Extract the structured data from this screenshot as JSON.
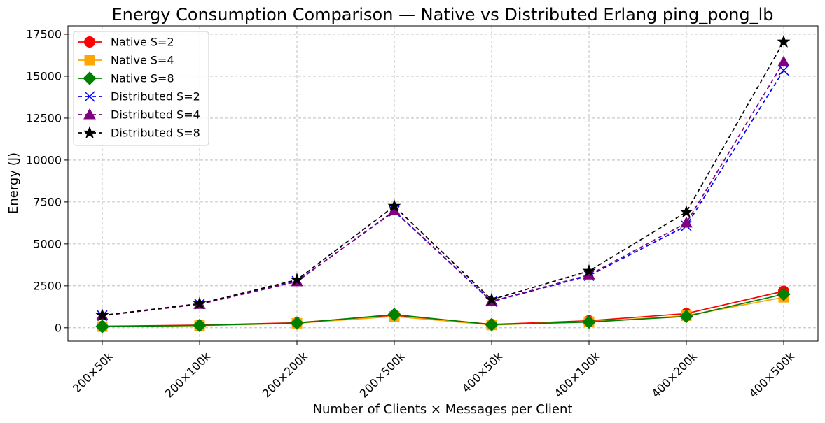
{
  "chart_data": {
    "type": "line",
    "title": "Energy Consumption Comparison — Native vs Distributed Erlang ping_pong_lb",
    "xlabel": "Number of Clients × Messages per Client",
    "ylabel": "Energy (J)",
    "categories": [
      "200×50k",
      "200×100k",
      "200×200k",
      "200×500k",
      "400×50k",
      "400×100k",
      "400×200k",
      "400×500k"
    ],
    "ylim": [
      -800,
      18000
    ],
    "yticks": [
      0,
      2500,
      5000,
      7500,
      10000,
      12500,
      15000,
      17500
    ],
    "ytick_labels": [
      "0",
      "2500",
      "5000",
      "7500",
      "10000",
      "12500",
      "15000",
      "17500"
    ],
    "grid": true,
    "legend_position": "top-left",
    "series": [
      {
        "name": "Native S=2",
        "color": "#ff0000",
        "marker": "circle",
        "line": "solid",
        "values": [
          90,
          160,
          300,
          750,
          200,
          420,
          850,
          2180
        ]
      },
      {
        "name": "Native S=4",
        "color": "#ffa500",
        "marker": "square",
        "line": "solid",
        "values": [
          70,
          130,
          270,
          680,
          170,
          360,
          720,
          1820
        ]
      },
      {
        "name": "Native S=8",
        "color": "#008000",
        "marker": "diamond",
        "line": "solid",
        "values": [
          75,
          140,
          280,
          790,
          190,
          340,
          680,
          2000
        ]
      },
      {
        "name": "Distributed S=2",
        "color": "#0000ff",
        "marker": "x",
        "line": "dashed",
        "values": [
          730,
          1420,
          2780,
          6950,
          1560,
          3100,
          6080,
          15350
        ]
      },
      {
        "name": "Distributed S=4",
        "color": "#800080",
        "marker": "triangle",
        "line": "dashed",
        "values": [
          720,
          1400,
          2750,
          6980,
          1580,
          3150,
          6250,
          15850
        ]
      },
      {
        "name": "Distributed S=8",
        "color": "#000000",
        "marker": "star",
        "line": "dashed",
        "values": [
          740,
          1440,
          2860,
          7250,
          1680,
          3380,
          6900,
          17050
        ]
      }
    ]
  }
}
